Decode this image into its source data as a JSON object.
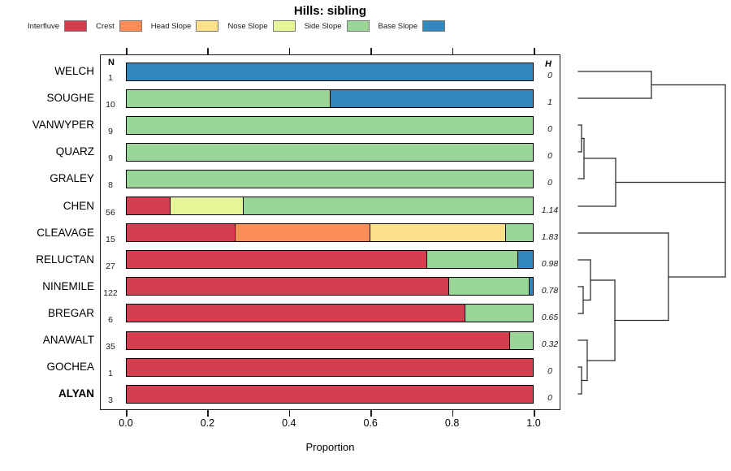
{
  "title": "Hills: sibling",
  "legend": {
    "items": [
      {
        "label": "Interfluve",
        "color": "#d53e4f"
      },
      {
        "label": "Crest",
        "color": "#fc8d59"
      },
      {
        "label": "Head Slope",
        "color": "#fee08b"
      },
      {
        "label": "Nose Slope",
        "color": "#e6f598"
      },
      {
        "label": "Side Slope",
        "color": "#99d594"
      },
      {
        "label": "Base Slope",
        "color": "#3288bd"
      }
    ]
  },
  "columns": {
    "n_header": "N",
    "h_header": "H"
  },
  "axis": {
    "title": "Proportion",
    "ticks": [
      {
        "label": "0.0",
        "value": 0.0
      },
      {
        "label": "0.2",
        "value": 0.2
      },
      {
        "label": "0.4",
        "value": 0.4
      },
      {
        "label": "0.6",
        "value": 0.6
      },
      {
        "label": "0.8",
        "value": 0.8
      },
      {
        "label": "1.0",
        "value": 1.0
      }
    ]
  },
  "chart_data": {
    "type": "bar",
    "variant": "horizontal-stacked-proportion",
    "title": "Hills: sibling",
    "xlabel": "Proportion",
    "xlim": [
      0,
      1
    ],
    "grid": false,
    "legend_position": "top",
    "classes": [
      "Interfluve",
      "Crest",
      "Head Slope",
      "Nose Slope",
      "Side Slope",
      "Base Slope"
    ],
    "rows": [
      {
        "name": "WELCH",
        "n": 1,
        "h": "0",
        "bold": false,
        "segments": [
          [
            "Base Slope",
            1.0
          ]
        ]
      },
      {
        "name": "SOUGHE",
        "n": 10,
        "h": "1",
        "bold": false,
        "segments": [
          [
            "Side Slope",
            0.5
          ],
          [
            "Base Slope",
            0.5
          ]
        ]
      },
      {
        "name": "VANWYPER",
        "n": 9,
        "h": "0",
        "bold": false,
        "segments": [
          [
            "Side Slope",
            1.0
          ]
        ]
      },
      {
        "name": "QUARZ",
        "n": 9,
        "h": "0",
        "bold": false,
        "segments": [
          [
            "Side Slope",
            1.0
          ]
        ]
      },
      {
        "name": "GRALEY",
        "n": 8,
        "h": "0",
        "bold": false,
        "segments": [
          [
            "Side Slope",
            1.0
          ]
        ]
      },
      {
        "name": "CHEN",
        "n": 56,
        "h": "1.14",
        "bold": false,
        "segments": [
          [
            "Interfluve",
            0.107
          ],
          [
            "Nose Slope",
            0.179
          ],
          [
            "Side Slope",
            0.714
          ]
        ]
      },
      {
        "name": "CLEAVAGE",
        "n": 15,
        "h": "1.83",
        "bold": false,
        "segments": [
          [
            "Interfluve",
            0.267
          ],
          [
            "Crest",
            0.333
          ],
          [
            "Head Slope",
            0.333
          ],
          [
            "Side Slope",
            0.067
          ]
        ]
      },
      {
        "name": "RELUCTAN",
        "n": 27,
        "h": "0.98",
        "bold": false,
        "segments": [
          [
            "Interfluve",
            0.741
          ],
          [
            "Side Slope",
            0.222
          ],
          [
            "Base Slope",
            0.037
          ]
        ]
      },
      {
        "name": "NINEMILE",
        "n": 122,
        "h": "0.78",
        "bold": false,
        "segments": [
          [
            "Interfluve",
            0.795
          ],
          [
            "Side Slope",
            0.197
          ],
          [
            "Base Slope",
            0.008
          ]
        ]
      },
      {
        "name": "BREGAR",
        "n": 6,
        "h": "0.65",
        "bold": false,
        "segments": [
          [
            "Interfluve",
            0.833
          ],
          [
            "Side Slope",
            0.167
          ]
        ]
      },
      {
        "name": "ANAWALT",
        "n": 35,
        "h": "0.32",
        "bold": false,
        "segments": [
          [
            "Interfluve",
            0.943
          ],
          [
            "Side Slope",
            0.057
          ]
        ]
      },
      {
        "name": "GOCHEA",
        "n": 1,
        "h": "0",
        "bold": false,
        "segments": [
          [
            "Interfluve",
            1.0
          ]
        ]
      },
      {
        "name": "ALYAN",
        "n": 3,
        "h": "0",
        "bold": true,
        "segments": [
          [
            "Interfluve",
            1.0
          ]
        ]
      }
    ]
  },
  "dendrogram": {
    "topology": "((WELCH,SOUGHE),(((VANWYPER,QUARZ),GRALEY),CHEN),(CLEAVAGE,((RELUCTAN,(NINEMILE,BREGAR)),(ANAWALT,(GOCHEA,ALYAN)))))",
    "segments": [
      [
        712,
        88,
        802,
        88
      ],
      [
        712,
        121,
        802,
        121
      ],
      [
        802,
        88,
        802,
        121
      ],
      [
        802,
        104.5,
        893,
        104.5
      ],
      [
        712,
        154,
        716,
        154
      ],
      [
        712,
        187,
        716,
        187
      ],
      [
        716,
        154,
        716,
        187
      ],
      [
        716,
        170.5,
        719,
        170.5
      ],
      [
        712,
        220,
        719,
        220
      ],
      [
        719,
        170.5,
        719,
        220
      ],
      [
        719,
        195,
        758,
        195
      ],
      [
        712,
        254,
        758,
        254
      ],
      [
        758,
        195,
        758,
        254
      ],
      [
        758,
        224.5,
        893,
        224.5
      ],
      [
        712,
        287,
        823,
        287
      ],
      [
        712,
        320,
        727,
        320
      ],
      [
        712,
        353,
        718,
        353
      ],
      [
        712,
        386,
        718,
        386
      ],
      [
        718,
        353,
        718,
        386
      ],
      [
        718,
        369.5,
        727,
        369.5
      ],
      [
        727,
        320,
        727,
        369.5
      ],
      [
        727,
        345,
        757,
        345
      ],
      [
        712,
        419,
        723,
        419
      ],
      [
        712,
        452,
        716,
        452
      ],
      [
        712,
        485,
        716,
        485
      ],
      [
        716,
        452,
        716,
        485
      ],
      [
        716,
        468.5,
        723,
        468.5
      ],
      [
        723,
        419,
        723,
        468.5
      ],
      [
        723,
        444,
        757,
        444
      ],
      [
        757,
        345,
        757,
        444
      ],
      [
        757,
        394.5,
        823,
        394.5
      ],
      [
        823,
        287,
        823,
        394.5
      ],
      [
        823,
        341,
        893,
        341
      ],
      [
        893,
        104.5,
        893,
        341
      ]
    ]
  }
}
